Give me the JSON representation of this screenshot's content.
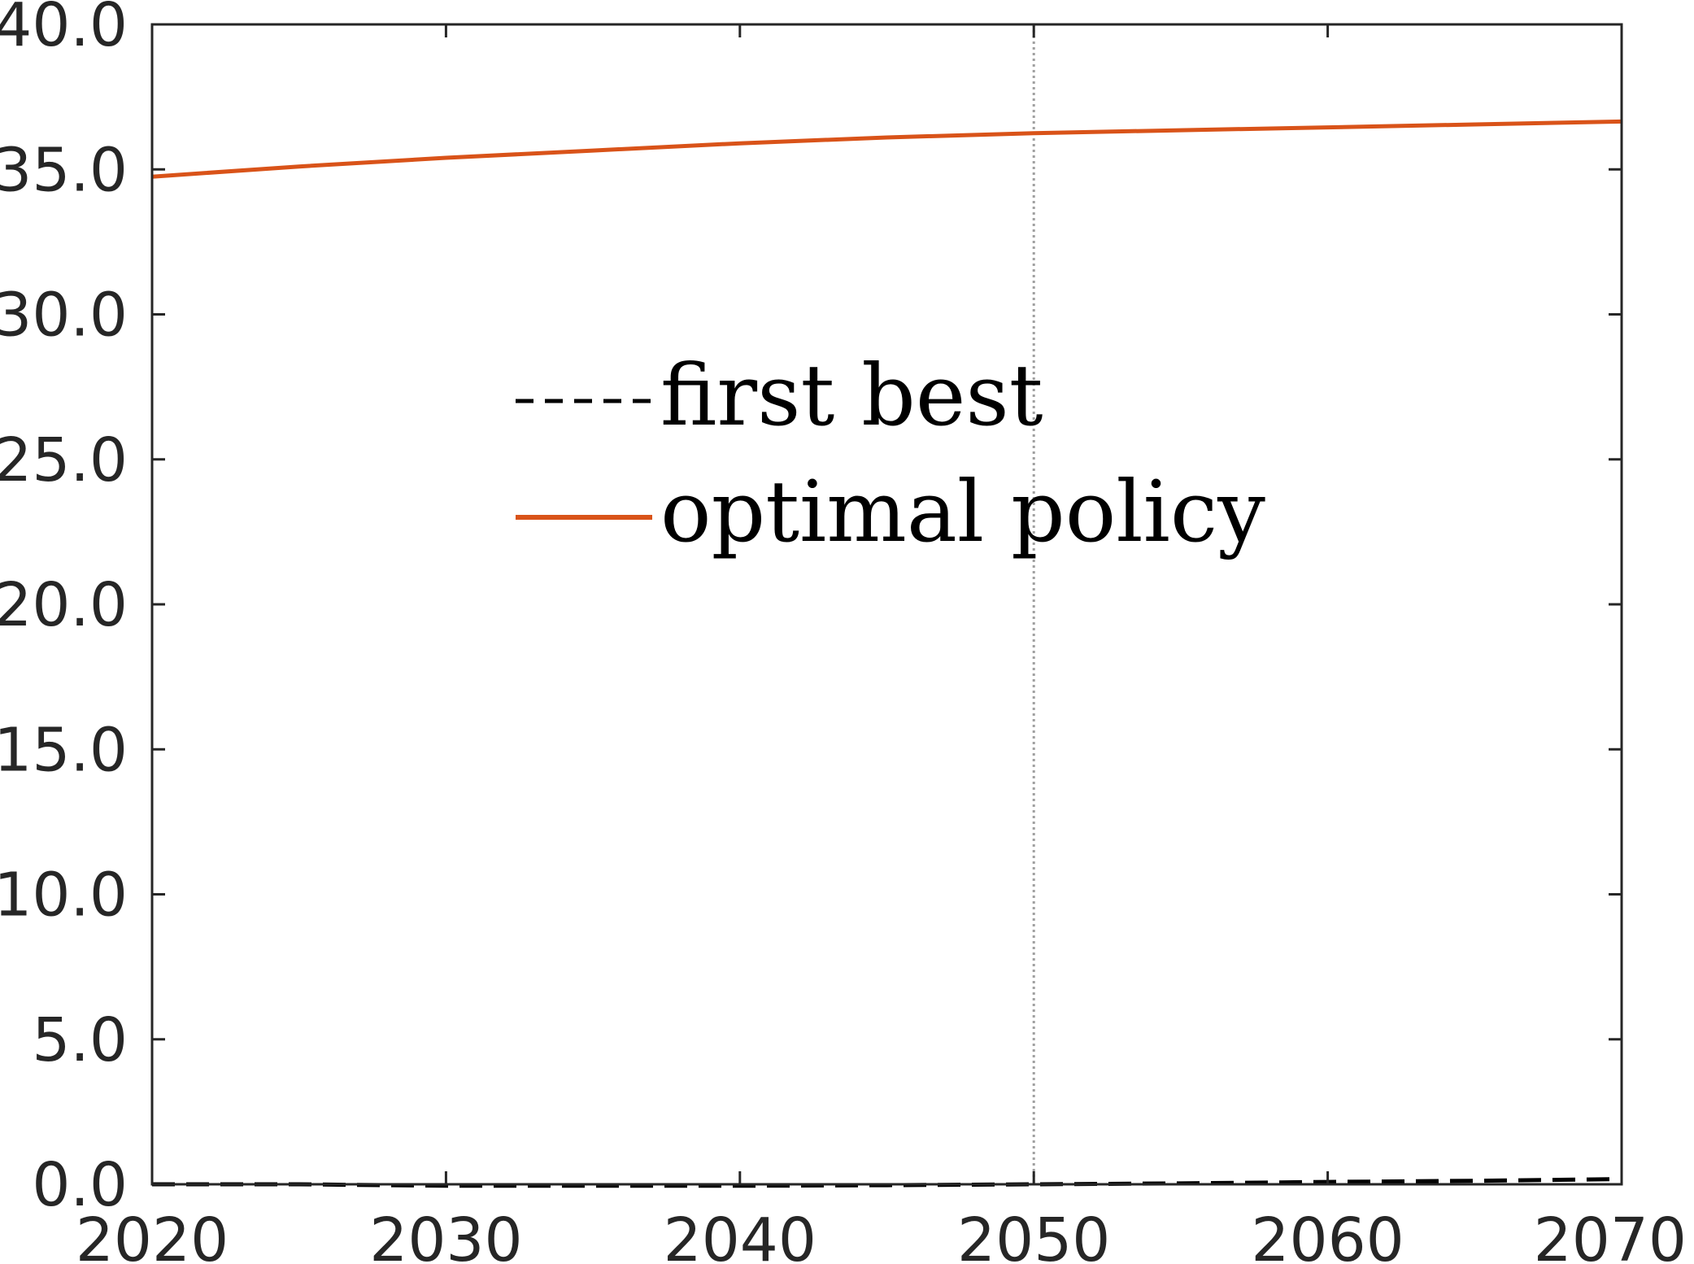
{
  "chart_data": {
    "type": "line",
    "title": "",
    "xlabel": "",
    "ylabel": "",
    "xlim": [
      2020,
      2070
    ],
    "ylim": [
      0,
      40
    ],
    "x_ticks": [
      2020,
      2030,
      2040,
      2050,
      2060,
      2070
    ],
    "x_tick_labels": [
      "2020",
      "2030",
      "2040",
      "2050",
      "2060",
      "2070"
    ],
    "y_ticks": [
      0,
      5,
      10,
      15,
      20,
      25,
      30,
      35,
      40
    ],
    "y_tick_labels": [
      "0.0",
      "5.0",
      "10.0",
      "15.0",
      "20.0",
      "25.0",
      "30.0",
      "35.0",
      "40.0"
    ],
    "grid": false,
    "reference_line": {
      "x": 2050,
      "style": "dotted",
      "color": "#a0a0a0"
    },
    "legend": {
      "placement": "upper-center",
      "entries": [
        {
          "label": "first best",
          "style": "dashed",
          "color": "#000000"
        },
        {
          "label": "optimal policy",
          "style": "solid",
          "color": "#d95319"
        }
      ]
    },
    "x": [
      2020,
      2025,
      2030,
      2035,
      2040,
      2045,
      2050,
      2055,
      2060,
      2065,
      2070
    ],
    "series": [
      {
        "name": "first best",
        "style": "dashed",
        "color": "#000000",
        "values": [
          0.0,
          0.0,
          -0.05,
          -0.05,
          -0.05,
          -0.03,
          0.0,
          0.03,
          0.08,
          0.12,
          0.18
        ]
      },
      {
        "name": "optimal policy",
        "style": "solid",
        "color": "#d95319",
        "values": [
          34.75,
          35.1,
          35.4,
          35.65,
          35.9,
          36.1,
          36.25,
          36.35,
          36.45,
          36.55,
          36.65
        ]
      }
    ]
  }
}
